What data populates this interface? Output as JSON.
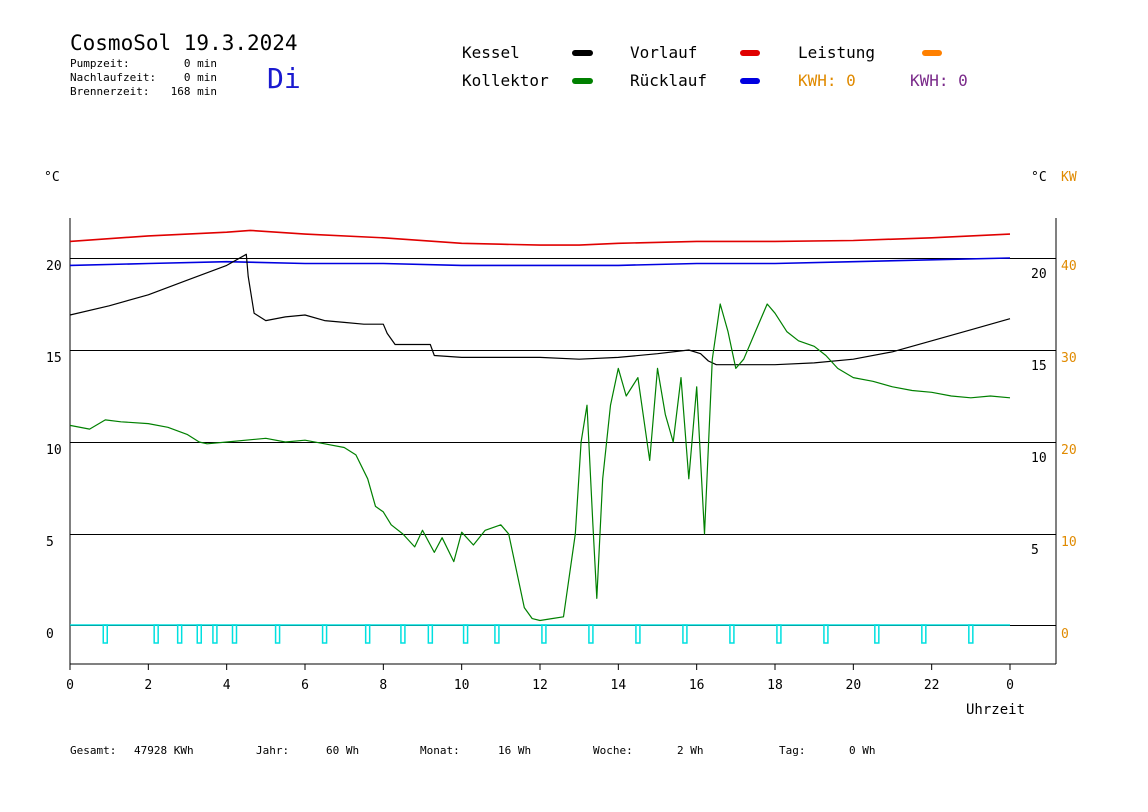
{
  "header": {
    "title": "CosmoSol 19.3.2024",
    "day": "Di",
    "info": [
      {
        "label": "Pumpzeit:",
        "value": "0 min"
      },
      {
        "label": "Nachlaufzeit:",
        "value": "0 min"
      },
      {
        "label": "Brennerzeit:",
        "value": "168 min"
      }
    ]
  },
  "legend": [
    {
      "label": "Kessel",
      "color": "#000000"
    },
    {
      "label": "Vorlauf",
      "color": "#e00000"
    },
    {
      "label": "Leistung",
      "color": "#ff8000"
    },
    {
      "label": "Kollektor",
      "color": "#008000"
    },
    {
      "label": "Rücklauf",
      "color": "#0000e0"
    }
  ],
  "kwh": [
    {
      "text": "KWH: 0",
      "color": "#e08a00"
    },
    {
      "text": "KWH: 0",
      "color": "#7a2a8a"
    }
  ],
  "axes": {
    "left_unit": "°C",
    "right_unit1": "°C",
    "right_unit2": "KW",
    "x_title": "Uhrzeit",
    "x_ticks": [
      "0",
      "2",
      "4",
      "6",
      "8",
      "10",
      "12",
      "14",
      "16",
      "18",
      "20",
      "22",
      "0"
    ],
    "y_left_ticks": [
      "0",
      "5",
      "10",
      "15",
      "20"
    ],
    "y_right_ticks": [
      "5",
      "10",
      "15",
      "20"
    ],
    "y_right_kw_ticks": [
      "0",
      "10",
      "20",
      "30",
      "40"
    ],
    "colors": {
      "kw": "#e08a00",
      "pump": "#00e0e0"
    }
  },
  "chart_data": {
    "type": "line",
    "title": "CosmoSol 19.3.2024",
    "xlabel": "Uhrzeit",
    "ylabel": "°C",
    "xlim": [
      0,
      24
    ],
    "ylim": [
      -2,
      22.5
    ],
    "series": [
      {
        "name": "Vorlauf",
        "color": "#e00000",
        "x": [
          0,
          2,
          4,
          4.6,
          6,
          8,
          10,
          11,
          12,
          13,
          14,
          16,
          18,
          20,
          22,
          24
        ],
        "y": [
          20.9,
          21.2,
          21.4,
          21.5,
          21.3,
          21.1,
          20.8,
          20.75,
          20.7,
          20.7,
          20.8,
          20.9,
          20.9,
          20.95,
          21.1,
          21.3
        ]
      },
      {
        "name": "Rücklauf",
        "color": "#0000e0",
        "x": [
          0,
          2,
          4,
          6,
          8,
          10,
          12,
          14,
          16,
          18,
          20,
          22,
          24
        ],
        "y": [
          19.6,
          19.7,
          19.8,
          19.7,
          19.7,
          19.6,
          19.6,
          19.6,
          19.7,
          19.7,
          19.8,
          19.9,
          20.0
        ]
      },
      {
        "name": "Kessel",
        "color": "#000000",
        "x": [
          0,
          1,
          2,
          3,
          4,
          4.5,
          4.55,
          4.7,
          5,
          5.5,
          6,
          6.5,
          7,
          7.5,
          8,
          8.1,
          8.3,
          9,
          9.2,
          9.3,
          10,
          11,
          12,
          13,
          14,
          15,
          15.8,
          16.1,
          16.3,
          16.5,
          17,
          18,
          19,
          20,
          21,
          22,
          23,
          24
        ],
        "y": [
          16.9,
          17.4,
          18.0,
          18.8,
          19.6,
          20.2,
          19.0,
          17.0,
          16.6,
          16.8,
          16.9,
          16.6,
          16.5,
          16.4,
          16.4,
          15.9,
          15.3,
          15.3,
          15.3,
          14.7,
          14.6,
          14.6,
          14.6,
          14.5,
          14.6,
          14.8,
          15.0,
          14.8,
          14.4,
          14.2,
          14.2,
          14.2,
          14.3,
          14.5,
          14.9,
          15.5,
          16.1,
          16.7
        ]
      },
      {
        "name": "Kollektor",
        "color": "#008000",
        "x": [
          0,
          0.5,
          0.9,
          1.3,
          2,
          2.5,
          3,
          3.3,
          3.5,
          4,
          5,
          5.5,
          6,
          6.5,
          7,
          7.3,
          7.6,
          7.8,
          8,
          8.2,
          8.5,
          8.8,
          9,
          9.3,
          9.5,
          9.8,
          10,
          10.3,
          10.6,
          11,
          11.2,
          11.4,
          11.6,
          11.8,
          12,
          12.3,
          12.6,
          12.9,
          13.05,
          13.2,
          13.35,
          13.45,
          13.6,
          13.8,
          14,
          14.2,
          14.5,
          14.8,
          15,
          15.2,
          15.4,
          15.6,
          15.8,
          16,
          16.2,
          16.4,
          16.6,
          16.8,
          17,
          17.2,
          17.5,
          17.8,
          18,
          18.3,
          18.6,
          19,
          19.3,
          19.6,
          20,
          20.5,
          21,
          21.5,
          22,
          22.5,
          23,
          23.5,
          24
        ],
        "y": [
          10.9,
          10.7,
          11.2,
          11.1,
          11.0,
          10.8,
          10.4,
          10.0,
          9.9,
          10.0,
          10.2,
          10.0,
          10.1,
          9.9,
          9.7,
          9.3,
          8.0,
          6.5,
          6.2,
          5.5,
          5.0,
          4.3,
          5.2,
          4.0,
          4.8,
          3.5,
          5.1,
          4.4,
          5.2,
          5.5,
          5.0,
          3.0,
          1.0,
          0.4,
          0.3,
          0.4,
          0.5,
          5.0,
          10.0,
          12.0,
          5.5,
          1.5,
          8.0,
          12.0,
          14.0,
          12.5,
          13.5,
          9.0,
          14.0,
          11.5,
          10.0,
          13.5,
          8.0,
          13.0,
          5.0,
          14.5,
          17.5,
          16.0,
          14.0,
          14.5,
          16.0,
          17.5,
          17.0,
          16.0,
          15.5,
          15.2,
          14.7,
          14.0,
          13.5,
          13.3,
          13.0,
          12.8,
          12.7,
          12.5,
          12.4,
          12.5,
          12.4
        ]
      }
    ],
    "pump_pulses": [
      0.9,
      2.2,
      2.8,
      3.3,
      3.7,
      4.2,
      5.3,
      6.5,
      7.6,
      8.5,
      9.2,
      10.1,
      10.9,
      12.1,
      13.3,
      14.5,
      15.7,
      16.9,
      18.1,
      19.3,
      20.6,
      21.8,
      23.0
    ]
  },
  "footer": [
    {
      "label": "Gesamt:",
      "value": "47928 KWh"
    },
    {
      "label": "Jahr:",
      "value": "60 Wh"
    },
    {
      "label": "Monat:",
      "value": "16 Wh"
    },
    {
      "label": "Woche:",
      "value": "2 Wh"
    },
    {
      "label": "Tag:",
      "value": "0 Wh"
    }
  ]
}
